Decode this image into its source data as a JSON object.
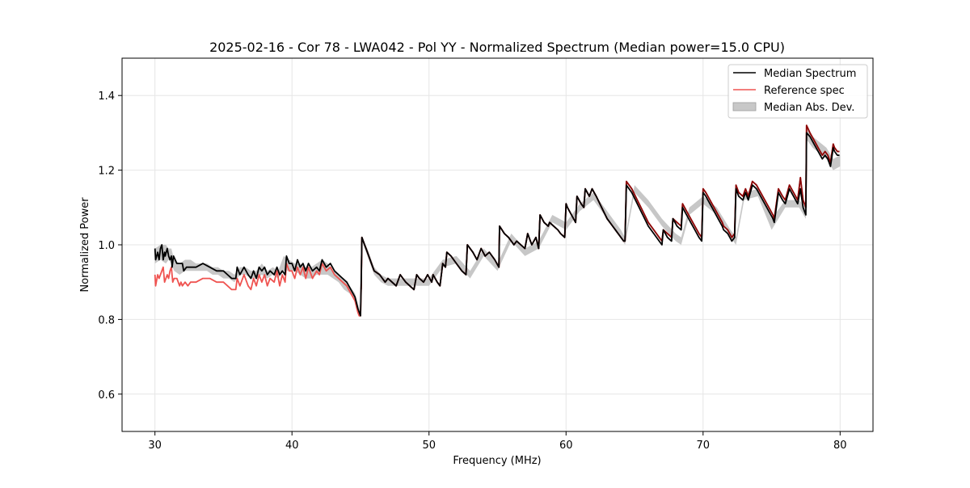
{
  "chart_data": {
    "type": "line",
    "title": "2025-02-16 - Cor 78 - LWA042 - Pol YY - Normalized Spectrum (Median power=15.0 CPU)",
    "xlabel": "Frequency (MHz)",
    "ylabel": "Normalized Power",
    "xlim": [
      27.6,
      82.4
    ],
    "ylim": [
      0.5,
      1.5
    ],
    "xticks": [
      30,
      40,
      50,
      60,
      70,
      80
    ],
    "yticks": [
      0.6,
      0.8,
      1.0,
      1.2,
      1.4
    ],
    "xtick_labels": [
      "30",
      "40",
      "50",
      "60",
      "70",
      "80"
    ],
    "ytick_labels": [
      "0.6",
      "0.8",
      "1.0",
      "1.2",
      "1.4"
    ],
    "grid": true,
    "legend_position": "top-right",
    "legend": [
      {
        "label": "Median Spectrum",
        "kind": "line",
        "color": "#000000"
      },
      {
        "label": "Reference spec",
        "kind": "line",
        "color": "#ef5350"
      },
      {
        "label": "Median Abs. Dev.",
        "kind": "patch",
        "color": "#bdbdbd"
      }
    ],
    "series": [
      {
        "name": "Median Abs. Dev.",
        "kind": "band",
        "color": "#bdbdbd",
        "x": [
          30.0,
          30.4,
          30.8,
          31.0,
          31.2,
          31.4,
          31.8,
          32.2,
          32.6,
          33.0,
          33.4,
          33.8,
          34.2,
          34.6,
          35.0,
          35.4,
          35.8,
          36.2,
          36.6,
          37.0,
          37.4,
          37.8,
          38.2,
          38.6,
          39.0,
          39.4,
          39.8,
          40.2,
          40.6,
          41.0,
          41.4,
          41.8,
          42.2,
          42.6,
          43.0,
          43.4,
          43.8,
          44.2,
          44.6,
          44.9,
          45.1,
          45.5,
          46.0,
          46.5,
          47.0,
          48.0,
          49.0,
          50.0,
          51.0,
          52.0,
          53.0,
          54.0,
          55.0,
          56.0,
          57.0,
          58.0,
          59.0,
          60.0,
          61.0,
          62.0,
          63.0,
          64.0,
          64.3,
          65.0,
          66.0,
          67.0,
          68.0,
          68.4,
          69.0,
          70.0,
          71.0,
          72.0,
          72.4,
          73.0,
          74.0,
          75.0,
          76.0,
          77.0,
          77.5,
          77.6,
          78.0,
          79.0,
          79.5,
          80.0
        ],
        "lower": [
          0.95,
          0.96,
          0.95,
          0.96,
          0.95,
          0.93,
          0.92,
          0.93,
          0.93,
          0.93,
          0.93,
          0.93,
          0.92,
          0.92,
          0.91,
          0.91,
          0.9,
          0.92,
          0.92,
          0.91,
          0.91,
          0.92,
          0.91,
          0.92,
          0.91,
          0.93,
          0.93,
          0.93,
          0.92,
          0.91,
          0.91,
          0.92,
          0.92,
          0.92,
          0.91,
          0.9,
          0.88,
          0.87,
          0.85,
          0.81,
          1.01,
          0.97,
          0.92,
          0.9,
          0.89,
          0.89,
          0.89,
          0.89,
          0.94,
          0.95,
          0.91,
          0.97,
          0.93,
          1.01,
          0.97,
          0.99,
          1.06,
          1.04,
          1.09,
          1.12,
          1.07,
          1.02,
          1.0,
          1.14,
          1.1,
          1.05,
          1.01,
          1.0,
          1.08,
          1.11,
          1.08,
          1.02,
          1.0,
          1.12,
          1.13,
          1.04,
          1.1,
          1.1,
          1.07,
          1.28,
          1.26,
          1.23,
          1.2,
          1.21
        ],
        "upper": [
          0.99,
          1.0,
          1.0,
          0.99,
          0.99,
          0.96,
          0.95,
          0.96,
          0.96,
          0.95,
          0.95,
          0.95,
          0.94,
          0.94,
          0.93,
          0.93,
          0.92,
          0.94,
          0.94,
          0.93,
          0.93,
          0.95,
          0.93,
          0.94,
          0.93,
          0.97,
          0.96,
          0.95,
          0.95,
          0.94,
          0.94,
          0.95,
          0.96,
          0.95,
          0.93,
          0.92,
          0.91,
          0.89,
          0.87,
          0.83,
          1.02,
          0.99,
          0.94,
          0.92,
          0.91,
          0.91,
          0.91,
          0.91,
          0.96,
          0.97,
          0.93,
          0.99,
          0.95,
          1.03,
          0.99,
          1.01,
          1.08,
          1.06,
          1.11,
          1.14,
          1.09,
          1.04,
          1.02,
          1.16,
          1.12,
          1.07,
          1.03,
          1.02,
          1.1,
          1.13,
          1.1,
          1.04,
          1.02,
          1.14,
          1.15,
          1.07,
          1.12,
          1.12,
          1.1,
          1.31,
          1.29,
          1.26,
          1.23,
          1.24
        ]
      },
      {
        "name": "Median Spectrum",
        "kind": "line",
        "color": "#000000",
        "x": [
          30.0,
          30.05,
          30.2,
          30.3,
          30.4,
          30.5,
          30.6,
          30.7,
          30.75,
          30.9,
          31.0,
          31.1,
          31.2,
          31.25,
          31.35,
          31.6,
          31.8,
          32.0,
          32.1,
          32.3,
          32.6,
          33.0,
          33.5,
          34.0,
          34.5,
          35.0,
          35.3,
          35.6,
          35.9,
          36.0,
          36.2,
          36.5,
          36.8,
          37.0,
          37.2,
          37.4,
          37.6,
          37.8,
          38.0,
          38.2,
          38.4,
          38.7,
          38.9,
          39.1,
          39.3,
          39.5,
          39.6,
          39.8,
          40.0,
          40.2,
          40.4,
          40.6,
          40.8,
          41.0,
          41.2,
          41.5,
          41.8,
          42.0,
          42.2,
          42.5,
          42.8,
          43.1,
          43.4,
          43.7,
          44.0,
          44.3,
          44.6,
          44.8,
          44.9,
          45.0,
          45.05,
          45.1,
          45.2,
          45.5,
          45.8,
          46.0,
          46.4,
          46.6,
          46.8,
          47.0,
          47.3,
          47.6,
          47.9,
          48.1,
          48.3,
          48.6,
          48.9,
          49.1,
          49.3,
          49.6,
          49.9,
          50.2,
          50.3,
          50.6,
          50.8,
          51.0,
          51.2,
          51.3,
          51.6,
          52.0,
          52.4,
          52.7,
          52.8,
          53.2,
          53.5,
          53.8,
          54.1,
          54.4,
          54.8,
          55.1,
          55.15,
          55.5,
          55.8,
          56.0,
          56.2,
          56.4,
          56.7,
          57.0,
          57.2,
          57.3,
          57.5,
          57.8,
          58.0,
          58.1,
          58.4,
          58.7,
          58.8,
          59.1,
          59.4,
          59.6,
          59.9,
          60.0,
          60.1,
          60.4,
          60.7,
          60.8,
          61.1,
          61.3,
          61.4,
          61.7,
          61.9,
          62.2,
          62.6,
          63.0,
          63.4,
          63.8,
          64.2,
          64.3,
          64.4,
          64.8,
          65.2,
          65.6,
          66.0,
          66.4,
          66.8,
          67.0,
          67.1,
          67.4,
          67.7,
          67.8,
          68.1,
          68.4,
          68.5,
          68.8,
          69.1,
          69.4,
          69.7,
          69.9,
          70.0,
          70.2,
          70.5,
          70.8,
          71.1,
          71.4,
          71.5,
          71.8,
          72.1,
          72.3,
          72.4,
          72.6,
          72.9,
          73.1,
          73.3,
          73.6,
          73.9,
          74.2,
          74.5,
          74.8,
          75.1,
          75.2,
          75.5,
          75.8,
          76.0,
          76.3,
          76.6,
          76.9,
          77.1,
          77.3,
          77.5,
          77.55,
          77.8,
          78.1,
          78.4,
          78.7,
          78.9,
          79.1,
          79.3,
          79.5,
          79.6,
          79.8,
          79.95
        ],
        "y": [
          0.99,
          0.96,
          0.98,
          0.96,
          0.99,
          1.0,
          0.96,
          0.98,
          0.97,
          0.99,
          0.97,
          0.96,
          0.97,
          0.94,
          0.97,
          0.95,
          0.95,
          0.95,
          0.93,
          0.94,
          0.94,
          0.94,
          0.95,
          0.94,
          0.93,
          0.93,
          0.92,
          0.91,
          0.91,
          0.94,
          0.92,
          0.94,
          0.92,
          0.91,
          0.93,
          0.91,
          0.94,
          0.93,
          0.94,
          0.92,
          0.93,
          0.92,
          0.94,
          0.92,
          0.93,
          0.92,
          0.97,
          0.95,
          0.95,
          0.93,
          0.96,
          0.94,
          0.95,
          0.93,
          0.95,
          0.93,
          0.94,
          0.93,
          0.96,
          0.94,
          0.95,
          0.93,
          0.92,
          0.91,
          0.9,
          0.88,
          0.86,
          0.83,
          0.82,
          0.81,
          0.89,
          1.02,
          1.01,
          0.98,
          0.95,
          0.93,
          0.92,
          0.91,
          0.9,
          0.91,
          0.9,
          0.89,
          0.92,
          0.91,
          0.9,
          0.89,
          0.88,
          0.92,
          0.91,
          0.9,
          0.92,
          0.9,
          0.92,
          0.9,
          0.89,
          0.95,
          0.94,
          0.98,
          0.97,
          0.95,
          0.93,
          0.92,
          1.0,
          0.98,
          0.96,
          0.99,
          0.97,
          0.98,
          0.96,
          0.94,
          1.05,
          1.03,
          1.02,
          1.01,
          1.0,
          1.01,
          1.0,
          0.99,
          1.03,
          1.02,
          1.0,
          1.02,
          0.99,
          1.08,
          1.06,
          1.05,
          1.06,
          1.05,
          1.04,
          1.03,
          1.02,
          1.11,
          1.1,
          1.08,
          1.06,
          1.13,
          1.11,
          1.1,
          1.15,
          1.13,
          1.15,
          1.13,
          1.1,
          1.07,
          1.05,
          1.03,
          1.01,
          1.01,
          1.16,
          1.14,
          1.11,
          1.08,
          1.05,
          1.03,
          1.01,
          1.0,
          1.04,
          1.02,
          1.01,
          1.07,
          1.05,
          1.04,
          1.1,
          1.08,
          1.06,
          1.04,
          1.02,
          1.01,
          1.14,
          1.13,
          1.11,
          1.09,
          1.07,
          1.05,
          1.04,
          1.03,
          1.01,
          1.02,
          1.15,
          1.13,
          1.12,
          1.14,
          1.12,
          1.16,
          1.15,
          1.13,
          1.11,
          1.09,
          1.07,
          1.06,
          1.14,
          1.12,
          1.11,
          1.15,
          1.13,
          1.11,
          1.15,
          1.1,
          1.08,
          1.3,
          1.29,
          1.27,
          1.25,
          1.23,
          1.24,
          1.23,
          1.21,
          1.26,
          1.25,
          1.24,
          1.24
        ]
      },
      {
        "name": "Reference spec",
        "kind": "line",
        "color": "#ef5350",
        "x": [
          30.0,
          30.05,
          30.2,
          30.3,
          30.5,
          30.6,
          30.7,
          30.9,
          31.0,
          31.1,
          31.2,
          31.3,
          31.4,
          31.6,
          31.8,
          31.9,
          32.0,
          32.2,
          32.4,
          32.6,
          33.0,
          33.5,
          34.0,
          34.5,
          35.0,
          35.3,
          35.6,
          35.9,
          36.0,
          36.2,
          36.5,
          36.8,
          37.0,
          37.2,
          37.4,
          37.6,
          37.8,
          38.0,
          38.2,
          38.4,
          38.7,
          38.9,
          39.1,
          39.3,
          39.5,
          39.6,
          39.8,
          40.0,
          40.2,
          40.4,
          40.6,
          40.8,
          41.0,
          41.2,
          41.5,
          41.8,
          42.0,
          42.2,
          42.5,
          42.8,
          43.1,
          43.4,
          43.7,
          44.0,
          44.3,
          44.6,
          44.8,
          44.9,
          45.0,
          45.05,
          45.1,
          45.2,
          45.5,
          45.8,
          46.0,
          46.4,
          46.6,
          46.8,
          47.0,
          47.3,
          47.6,
          47.9,
          48.1,
          48.3,
          48.6,
          48.9,
          49.1,
          49.3,
          49.6,
          49.9,
          50.2,
          50.3,
          50.6,
          50.8,
          51.0,
          51.2,
          51.3,
          51.6,
          52.0,
          52.4,
          52.7,
          52.8,
          53.2,
          53.5,
          53.8,
          54.1,
          54.4,
          54.8,
          55.1,
          55.15,
          55.5,
          55.8,
          56.0,
          56.2,
          56.4,
          56.7,
          57.0,
          57.2,
          57.3,
          57.5,
          57.8,
          58.0,
          58.1,
          58.4,
          58.7,
          58.8,
          59.1,
          59.4,
          59.6,
          59.9,
          60.0,
          60.1,
          60.4,
          60.7,
          60.8,
          61.1,
          61.3,
          61.4,
          61.7,
          61.9,
          62.2,
          62.6,
          63.0,
          63.4,
          63.8,
          64.2,
          64.3,
          64.4,
          64.8,
          65.2,
          65.6,
          66.0,
          66.4,
          66.8,
          67.0,
          67.1,
          67.4,
          67.7,
          67.8,
          68.1,
          68.4,
          68.5,
          68.8,
          69.1,
          69.4,
          69.7,
          69.9,
          70.0,
          70.2,
          70.5,
          70.8,
          71.1,
          71.4,
          71.5,
          71.8,
          72.1,
          72.3,
          72.4,
          72.6,
          72.9,
          73.1,
          73.3,
          73.6,
          73.9,
          74.2,
          74.5,
          74.8,
          75.1,
          75.2,
          75.5,
          75.8,
          76.0,
          76.3,
          76.6,
          76.9,
          77.1,
          77.3,
          77.5,
          77.55,
          77.8,
          78.1,
          78.4,
          78.7,
          78.9,
          79.1,
          79.3,
          79.5,
          79.6,
          79.8,
          79.95
        ],
        "y": [
          0.92,
          0.89,
          0.92,
          0.91,
          0.93,
          0.94,
          0.9,
          0.92,
          0.91,
          0.93,
          0.94,
          0.9,
          0.91,
          0.91,
          0.89,
          0.9,
          0.89,
          0.9,
          0.89,
          0.9,
          0.9,
          0.91,
          0.91,
          0.9,
          0.9,
          0.89,
          0.88,
          0.88,
          0.91,
          0.89,
          0.92,
          0.89,
          0.88,
          0.91,
          0.89,
          0.92,
          0.9,
          0.92,
          0.89,
          0.91,
          0.9,
          0.93,
          0.89,
          0.92,
          0.9,
          0.95,
          0.93,
          0.93,
          0.91,
          0.94,
          0.92,
          0.94,
          0.91,
          0.94,
          0.91,
          0.93,
          0.92,
          0.95,
          0.93,
          0.94,
          0.92,
          0.91,
          0.9,
          0.89,
          0.87,
          0.85,
          0.82,
          0.81,
          0.81,
          0.88,
          1.02,
          1.01,
          0.98,
          0.95,
          0.93,
          0.92,
          0.91,
          0.9,
          0.91,
          0.9,
          0.89,
          0.92,
          0.91,
          0.9,
          0.89,
          0.88,
          0.92,
          0.91,
          0.9,
          0.92,
          0.9,
          0.92,
          0.9,
          0.89,
          0.95,
          0.94,
          0.98,
          0.97,
          0.95,
          0.93,
          0.92,
          1.0,
          0.98,
          0.96,
          0.99,
          0.97,
          0.98,
          0.96,
          0.94,
          1.05,
          1.03,
          1.02,
          1.01,
          1.0,
          1.01,
          1.0,
          0.99,
          1.03,
          1.02,
          1.0,
          1.02,
          0.99,
          1.08,
          1.06,
          1.05,
          1.06,
          1.05,
          1.04,
          1.03,
          1.02,
          1.11,
          1.1,
          1.08,
          1.06,
          1.13,
          1.11,
          1.1,
          1.15,
          1.13,
          1.15,
          1.13,
          1.1,
          1.07,
          1.05,
          1.03,
          1.01,
          1.01,
          1.17,
          1.15,
          1.12,
          1.09,
          1.06,
          1.04,
          1.02,
          1.01,
          1.04,
          1.03,
          1.02,
          1.07,
          1.06,
          1.05,
          1.11,
          1.09,
          1.07,
          1.05,
          1.03,
          1.02,
          1.15,
          1.14,
          1.12,
          1.1,
          1.08,
          1.06,
          1.05,
          1.04,
          1.02,
          1.03,
          1.16,
          1.14,
          1.13,
          1.15,
          1.13,
          1.17,
          1.16,
          1.14,
          1.12,
          1.1,
          1.08,
          1.07,
          1.15,
          1.13,
          1.12,
          1.16,
          1.14,
          1.12,
          1.18,
          1.12,
          1.1,
          1.32,
          1.3,
          1.28,
          1.26,
          1.24,
          1.25,
          1.24,
          1.22,
          1.27,
          1.26,
          1.25,
          1.25
        ]
      }
    ]
  }
}
